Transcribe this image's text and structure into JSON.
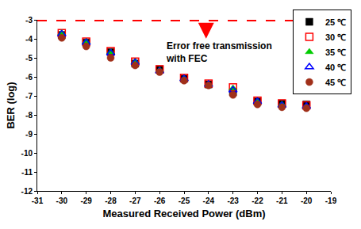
{
  "chart_data": {
    "type": "scatter",
    "x_label": "Measured Received Power (dBm)",
    "y_label": "BER (log)",
    "annotation": [
      "Error free transmission",
      "with FEC"
    ],
    "reference_line": {
      "value": -3,
      "color": "#ff0000",
      "line_style": "dash"
    },
    "x": [
      -30,
      -29,
      -28,
      -27,
      -26,
      -25,
      -24,
      -23,
      -22,
      -21,
      -20
    ],
    "series": [
      {
        "name": "25 ℃",
        "color": "#000000",
        "marker": "square",
        "values": [
          -3.8,
          -4.2,
          -4.7,
          -5.3,
          -5.6,
          -6.1,
          -6.4,
          -6.8,
          -7.3,
          -7.4,
          -7.45
        ]
      },
      {
        "name": "30 ℃",
        "color": "#ff0000",
        "marker": "square-open",
        "values": [
          -3.7,
          -4.15,
          -4.65,
          -5.2,
          -5.6,
          -6.05,
          -6.35,
          -6.55,
          -7.25,
          -7.4,
          -7.5
        ]
      },
      {
        "name": "35 ℃",
        "color": "#00cc00",
        "marker": "triangle-up",
        "values": [
          -3.7,
          -4.15,
          -4.7,
          -5.2,
          -5.65,
          -6.1,
          -6.4,
          -6.6,
          -7.3,
          -7.45,
          -7.55
        ]
      },
      {
        "name": "40 ℃",
        "color": "#0000ff",
        "marker": "triangle-up-open",
        "values": [
          -3.75,
          -4.2,
          -4.75,
          -5.25,
          -5.7,
          -6.1,
          -6.4,
          -6.7,
          -7.3,
          -7.5,
          -7.55
        ]
      },
      {
        "name": "45 ℃",
        "color": "#a0301a",
        "marker": "circle",
        "values": [
          -3.95,
          -4.4,
          -5.0,
          -5.4,
          -5.75,
          -6.2,
          -6.45,
          -6.95,
          -7.45,
          -7.6,
          -7.65
        ]
      }
    ],
    "xlim": [
      -31,
      -19
    ],
    "xticks": [
      -31,
      -30,
      -29,
      -28,
      -27,
      -26,
      -25,
      -24,
      -23,
      -22,
      -21,
      -20,
      -19
    ],
    "ylim": [
      -12,
      -3
    ],
    "yticks": [
      -12,
      -11,
      -10,
      -9,
      -8,
      -7,
      -6,
      -5,
      -4,
      -3
    ],
    "grid": false,
    "legend": "upper right"
  }
}
